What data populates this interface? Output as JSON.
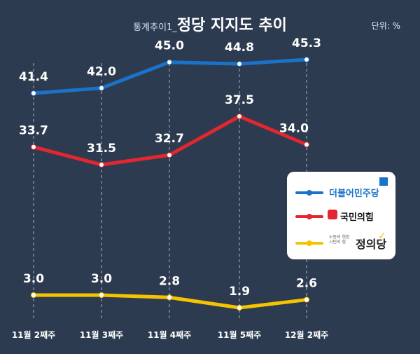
{
  "header": {
    "title_prefix": "통계추이1_",
    "title_main": "정당 지지도 추이",
    "unit": "단위: %"
  },
  "colors": {
    "background": "#2d3b50",
    "blue": "#1a73c8",
    "red": "#e3262f",
    "yellow": "#f5c400",
    "gridline": "#c8cfda"
  },
  "legend": {
    "items": [
      {
        "name": "더불어민주당",
        "color": "#1a73c8",
        "text_color": "#1a73c8",
        "icon": "flag-icon"
      },
      {
        "name": "국민의힘",
        "color": "#e3262f",
        "text_color": "#111111",
        "icon": "square-icon"
      },
      {
        "name": "정의당",
        "color": "#f5c400",
        "text_color": "#222222",
        "icon": "check-icon",
        "sub_text": "노동의 희망 시민의 힘"
      }
    ]
  },
  "chart_data": {
    "type": "line",
    "categories": [
      "11월 2째주",
      "11월 3째주",
      "11월 4째주",
      "11월 5째주",
      "12월 2째주"
    ],
    "series": [
      {
        "name": "더불어민주당",
        "color": "#1a73c8",
        "values": [
          41.4,
          42.0,
          45.0,
          44.8,
          45.3
        ]
      },
      {
        "name": "국민의힘",
        "color": "#e3262f",
        "values": [
          33.7,
          31.5,
          32.7,
          37.5,
          34.0
        ]
      },
      {
        "name": "정의당",
        "color": "#f5c400",
        "values": [
          3.0,
          3.0,
          2.8,
          1.9,
          2.6
        ]
      }
    ],
    "ylabel": "",
    "xlabel": "",
    "grid": "vertical dashed lines at each category",
    "legend_position": "right"
  }
}
